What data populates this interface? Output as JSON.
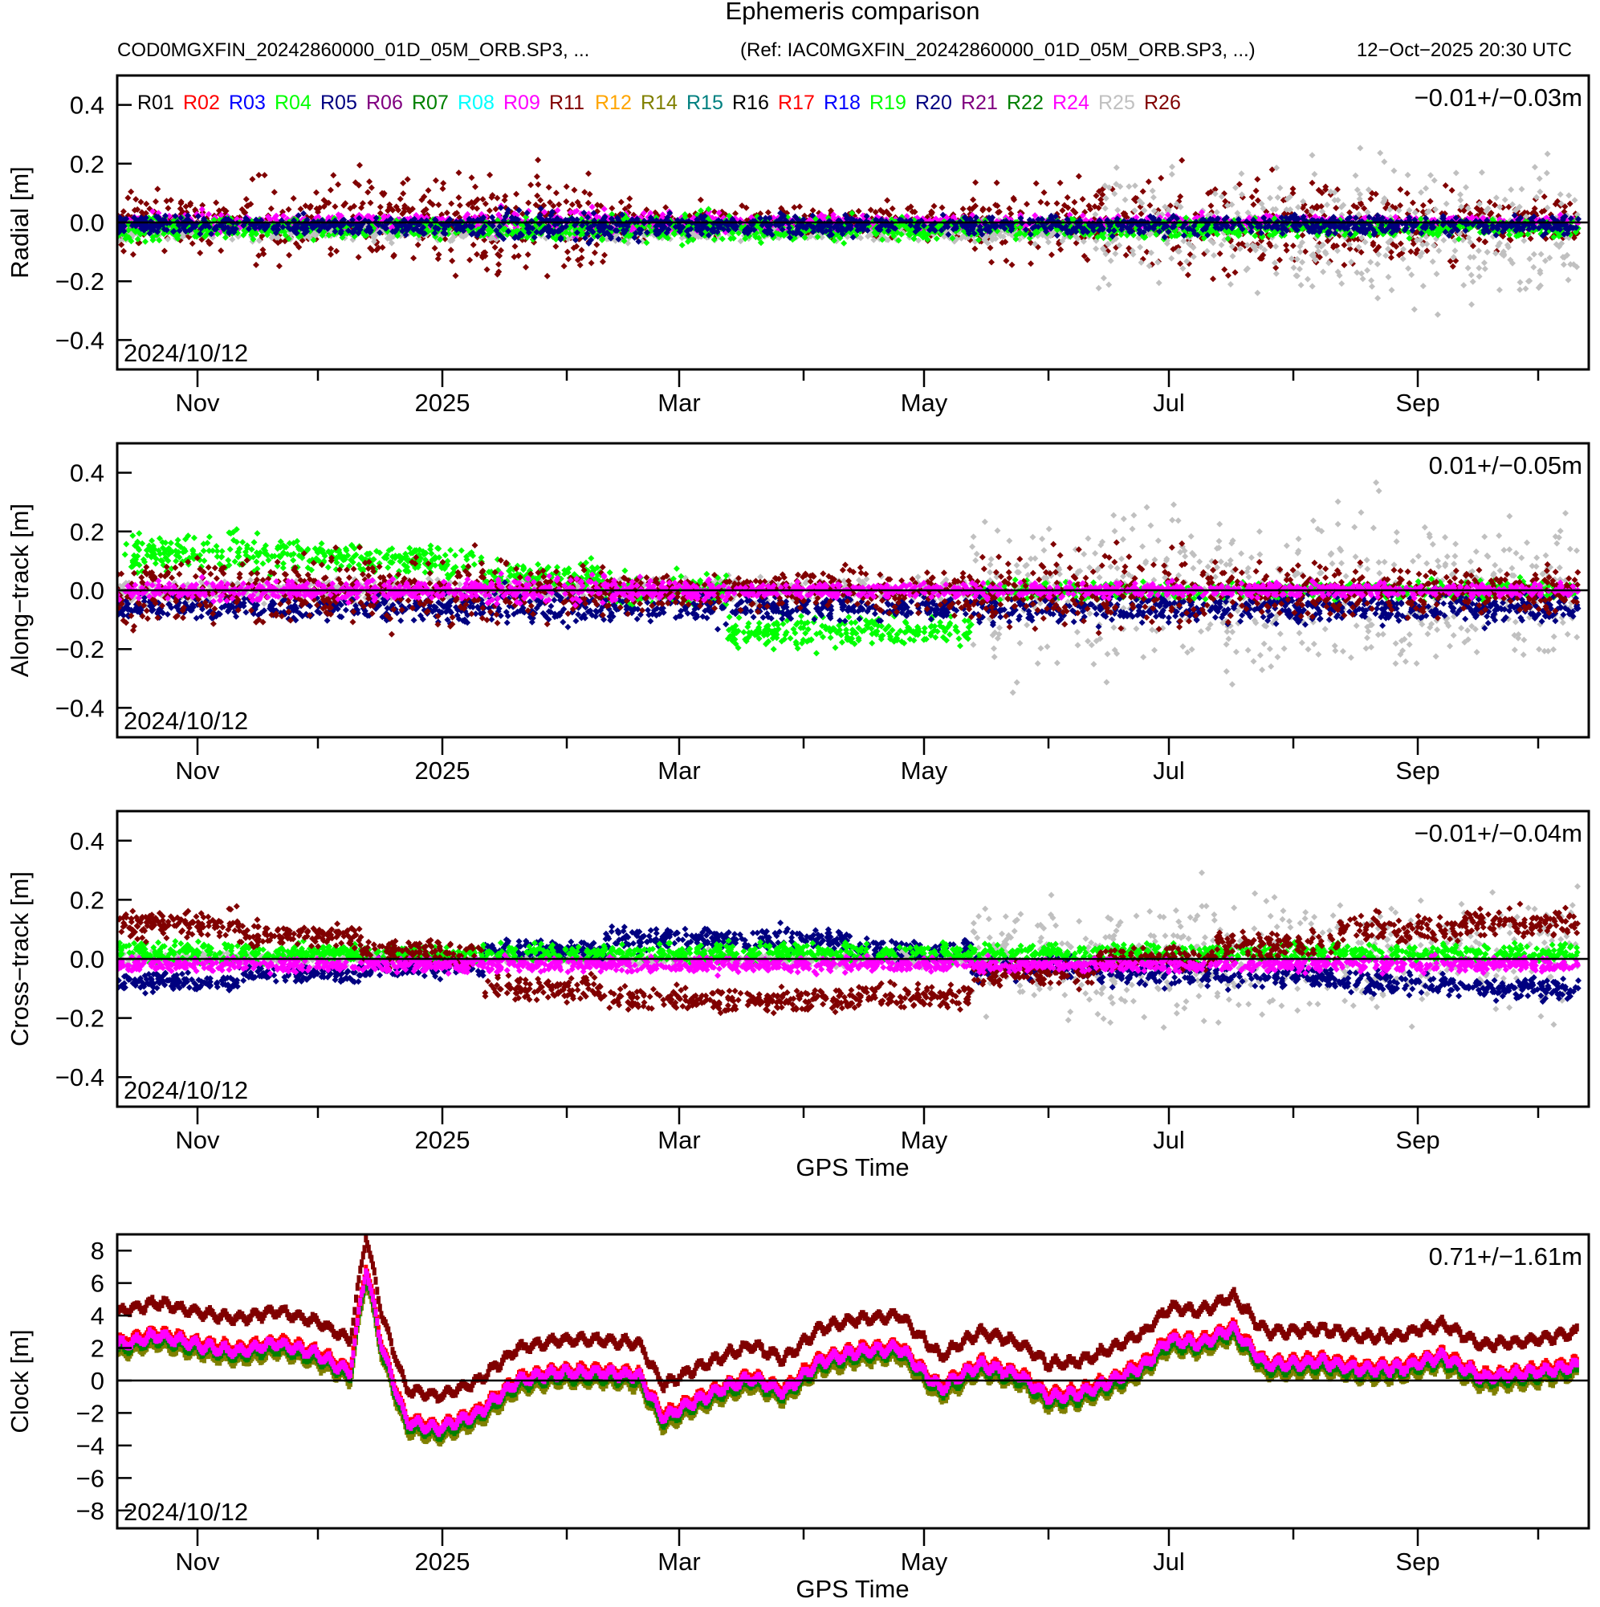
{
  "chart_data": {
    "type": "scatter",
    "title": "Ephemeris comparison",
    "subtitle_left": "COD0MGXFIN_20242860000_01D_05M_ORB.SP3, ...",
    "subtitle_mid": "(Ref: IAC0MGXFIN_20242860000_01D_05M_ORB.SP3, ...)",
    "subtitle_right": "12−Oct−2025 20:30 UTC",
    "start_date_label": "2024/10/12",
    "x_start": "2024-10-12",
    "x_end": "2025-10-12",
    "xlabel": "GPS Time",
    "x_major_ticks": [
      {
        "date": "2024-11-01",
        "label": "Nov"
      },
      {
        "date": "2025-01-01",
        "label": "2025"
      },
      {
        "date": "2025-03-01",
        "label": "Mar"
      },
      {
        "date": "2025-05-01",
        "label": "May"
      },
      {
        "date": "2025-07-01",
        "label": "Jul"
      },
      {
        "date": "2025-09-01",
        "label": "Sep"
      }
    ],
    "x_minor_ticks": [
      "2024-12-01",
      "2025-02-01",
      "2025-04-01",
      "2025-06-01",
      "2025-08-01",
      "2025-10-01"
    ],
    "legend": [
      {
        "name": "R01",
        "color": "#000000"
      },
      {
        "name": "R02",
        "color": "#ff0000"
      },
      {
        "name": "R03",
        "color": "#0000ff"
      },
      {
        "name": "R04",
        "color": "#00ff00"
      },
      {
        "name": "R05",
        "color": "#000080"
      },
      {
        "name": "R06",
        "color": "#800080"
      },
      {
        "name": "R07",
        "color": "#008000"
      },
      {
        "name": "R08",
        "color": "#00ffff"
      },
      {
        "name": "R09",
        "color": "#ff00ff"
      },
      {
        "name": "R11",
        "color": "#800000"
      },
      {
        "name": "R12",
        "color": "#ffa500"
      },
      {
        "name": "R14",
        "color": "#808000"
      },
      {
        "name": "R15",
        "color": "#008080"
      },
      {
        "name": "R16",
        "color": "#000000"
      },
      {
        "name": "R17",
        "color": "#ff0000"
      },
      {
        "name": "R18",
        "color": "#0000ff"
      },
      {
        "name": "R19",
        "color": "#00ff00"
      },
      {
        "name": "R20",
        "color": "#000080"
      },
      {
        "name": "R21",
        "color": "#800080"
      },
      {
        "name": "R22",
        "color": "#008000"
      },
      {
        "name": "R24",
        "color": "#ff00ff"
      },
      {
        "name": "R25",
        "color": "#c0c0c0"
      },
      {
        "name": "R26",
        "color": "#800000"
      }
    ],
    "panels": [
      {
        "id": "radial",
        "ylabel": "Radial [m]",
        "ylim": [
          -0.5,
          0.5
        ],
        "yticks": [
          0.4,
          0.2,
          0.0,
          -0.2,
          -0.4
        ],
        "ytick_labels": [
          "0.4",
          "0.2",
          "0.0",
          "−0.2",
          "−0.4"
        ],
        "stat": "−0.01+/−0.03m",
        "show_legend": true,
        "show_xlabel": false,
        "series": [
          {
            "sat": "R26",
            "color": "#800000",
            "spread_monthly": [
              0.12,
              0.2,
              0.18,
              0.19,
              0.08,
              0.06,
              0.08,
              0.17,
              0.2,
              0.2,
              0.17,
              0.1
            ],
            "mean": 0.0
          },
          {
            "sat": "R25",
            "color": "#c0c0c0",
            "spread_monthly": [
              0.04,
              0.04,
              0.04,
              0.04,
              0.04,
              0.04,
              0.04,
              0.05,
              0.2,
              0.25,
              0.3,
              0.3
            ],
            "mean": -0.03
          },
          {
            "sat": "R09",
            "color": "#ff00ff",
            "spread_monthly": [
              0.04,
              0.03,
              0.03,
              0.06,
              0.04,
              0.03,
              0.03,
              0.03,
              0.03,
              0.03,
              0.03,
              0.03
            ],
            "mean": 0.0
          },
          {
            "sat": "R04",
            "color": "#00ff00",
            "spread_monthly": [
              0.05,
              0.04,
              0.04,
              0.05,
              0.06,
              0.06,
              0.05,
              0.04,
              0.04,
              0.04,
              0.04,
              0.04
            ],
            "mean": -0.02
          },
          {
            "sat": "R05",
            "color": "#000080",
            "spread_monthly": [
              0.04,
              0.04,
              0.04,
              0.07,
              0.05,
              0.04,
              0.04,
              0.04,
              0.04,
              0.04,
              0.04,
              0.04
            ],
            "mean": -0.01
          }
        ]
      },
      {
        "id": "along-track",
        "ylabel": "Along−track [m]",
        "ylim": [
          -0.5,
          0.5
        ],
        "yticks": [
          0.4,
          0.2,
          0.0,
          -0.2,
          -0.4
        ],
        "ytick_labels": [
          "0.4",
          "0.2",
          "0.0",
          "−0.2",
          "−0.4"
        ],
        "stat": "0.01+/−0.05m",
        "show_legend": false,
        "show_xlabel": false,
        "series": [
          {
            "sat": "R25",
            "color": "#c0c0c0",
            "spread_monthly": [
              0.05,
              0.05,
              0.05,
              0.05,
              0.05,
              0.05,
              0.05,
              0.3,
              0.35,
              0.35,
              0.35,
              0.3
            ],
            "mean": 0.0
          },
          {
            "sat": "R04",
            "color": "#00ff00",
            "spread_monthly": [
              0.08,
              0.07,
              0.06,
              0.06,
              0.07,
              0.07,
              0.06,
              0.04,
              0.04,
              0.04,
              0.04,
              0.04
            ],
            "mean_monthly": [
              0.13,
              0.12,
              0.1,
              0.05,
              0.0,
              -0.14,
              -0.14,
              0.0,
              0.0,
              0.0,
              0.0,
              0.0
            ]
          },
          {
            "sat": "R05",
            "color": "#000080",
            "spread_monthly": [
              0.05,
              0.05,
              0.06,
              0.08,
              0.06,
              0.05,
              0.05,
              0.06,
              0.06,
              0.06,
              0.06,
              0.06
            ],
            "mean": -0.06
          },
          {
            "sat": "R26",
            "color": "#800000",
            "spread_monthly": [
              0.15,
              0.15,
              0.15,
              0.12,
              0.08,
              0.08,
              0.1,
              0.15,
              0.15,
              0.12,
              0.1,
              0.1
            ],
            "mean": 0.0
          },
          {
            "sat": "R09",
            "color": "#ff00ff",
            "spread_monthly": [
              0.04,
              0.04,
              0.04,
              0.06,
              0.04,
              0.03,
              0.03,
              0.03,
              0.03,
              0.03,
              0.03,
              0.03
            ],
            "mean": 0.0
          }
        ]
      },
      {
        "id": "cross-track",
        "ylabel": "Cross−track [m]",
        "ylim": [
          -0.5,
          0.5
        ],
        "yticks": [
          0.4,
          0.2,
          0.0,
          -0.2,
          -0.4
        ],
        "ytick_labels": [
          "0.4",
          "0.2",
          "0.0",
          "−0.2",
          "−0.4"
        ],
        "stat": "−0.01+/−0.04m",
        "show_legend": false,
        "show_xlabel": true,
        "series": [
          {
            "sat": "R25",
            "color": "#c0c0c0",
            "spread_monthly": [
              0.03,
              0.03,
              0.03,
              0.03,
              0.03,
              0.03,
              0.03,
              0.25,
              0.25,
              0.25,
              0.25,
              0.3
            ],
            "mean": 0.0
          },
          {
            "sat": "R20",
            "color": "#000080",
            "spread_monthly": [
              0.04,
              0.04,
              0.04,
              0.04,
              0.05,
              0.05,
              0.05,
              0.05,
              0.05,
              0.05,
              0.05,
              0.05
            ],
            "mean_monthly": [
              -0.08,
              -0.05,
              -0.03,
              0.03,
              0.07,
              0.07,
              0.03,
              -0.03,
              -0.05,
              -0.06,
              -0.08,
              -0.1
            ]
          },
          {
            "sat": "R04",
            "color": "#00ff00",
            "spread_monthly": [
              0.05,
              0.04,
              0.04,
              0.04,
              0.04,
              0.04,
              0.04,
              0.04,
              0.04,
              0.04,
              0.04,
              0.04
            ],
            "mean": 0.02
          },
          {
            "sat": "R26",
            "color": "#800000",
            "spread_monthly": [
              0.06,
              0.05,
              0.05,
              0.05,
              0.05,
              0.05,
              0.05,
              0.05,
              0.05,
              0.06,
              0.06,
              0.06
            ],
            "mean_monthly": [
              0.12,
              0.08,
              0.02,
              -0.1,
              -0.14,
              -0.14,
              -0.13,
              -0.05,
              0.0,
              0.05,
              0.1,
              0.12
            ]
          },
          {
            "sat": "R09",
            "color": "#ff00ff",
            "spread_monthly": [
              0.03,
              0.03,
              0.03,
              0.03,
              0.03,
              0.03,
              0.03,
              0.03,
              0.03,
              0.03,
              0.03,
              0.03
            ],
            "mean": -0.02
          }
        ]
      },
      {
        "id": "clock",
        "ylabel": "Clock [m]",
        "ylim": [
          -9.1,
          9.0
        ],
        "yticks": [
          8,
          6,
          4,
          2,
          0,
          -2,
          -4,
          -6,
          -8
        ],
        "ytick_labels": [
          "8",
          "6",
          "4",
          "2",
          "0",
          "−2",
          "−4",
          "−6",
          "−8"
        ],
        "stat": "0.71+/−1.61m",
        "show_legend": false,
        "show_xlabel": true,
        "series": [
          {
            "sat": "R25",
            "color": "#c0c0c0",
            "offset": -0.3,
            "mode": "line"
          },
          {
            "sat": "R14",
            "color": "#808000",
            "offset": -0.6,
            "mode": "line"
          },
          {
            "sat": "R07",
            "color": "#008000",
            "offset": -0.3,
            "mode": "line"
          },
          {
            "sat": "R02",
            "color": "#ff0000",
            "offset": 0.2,
            "mode": "line"
          },
          {
            "sat": "R09",
            "color": "#ff00ff",
            "offset": 0.0,
            "mode": "line"
          },
          {
            "sat": "R26",
            "color": "#800000",
            "offset": 2.0,
            "mode": "line"
          }
        ],
        "common_curve": {
          "days": [
            0,
            10,
            20,
            30,
            40,
            50,
            58,
            62,
            66,
            72,
            80,
            90,
            100,
            110,
            120,
            130,
            136,
            142,
            150,
            158,
            166,
            175,
            185,
            195,
            205,
            215,
            225,
            232,
            240,
            248,
            256,
            262,
            270,
            278,
            286,
            292,
            300,
            310,
            320,
            330,
            340,
            350,
            358,
            364
          ],
          "values": [
            2.2,
            2.8,
            2.2,
            1.8,
            2.3,
            1.6,
            0.5,
            7.0,
            2.0,
            -2.5,
            -3.0,
            -2.0,
            0.0,
            0.5,
            0.5,
            0.3,
            -2.3,
            -1.5,
            -0.6,
            0.2,
            -0.7,
            1.2,
            1.8,
            2.0,
            -0.5,
            1.0,
            0.3,
            -1.0,
            -0.8,
            0.0,
            1.0,
            2.5,
            2.3,
            3.2,
            1.0,
            1.0,
            1.2,
            0.7,
            0.8,
            1.5,
            0.2,
            0.4,
            0.7,
            1.0
          ]
        }
      }
    ]
  }
}
